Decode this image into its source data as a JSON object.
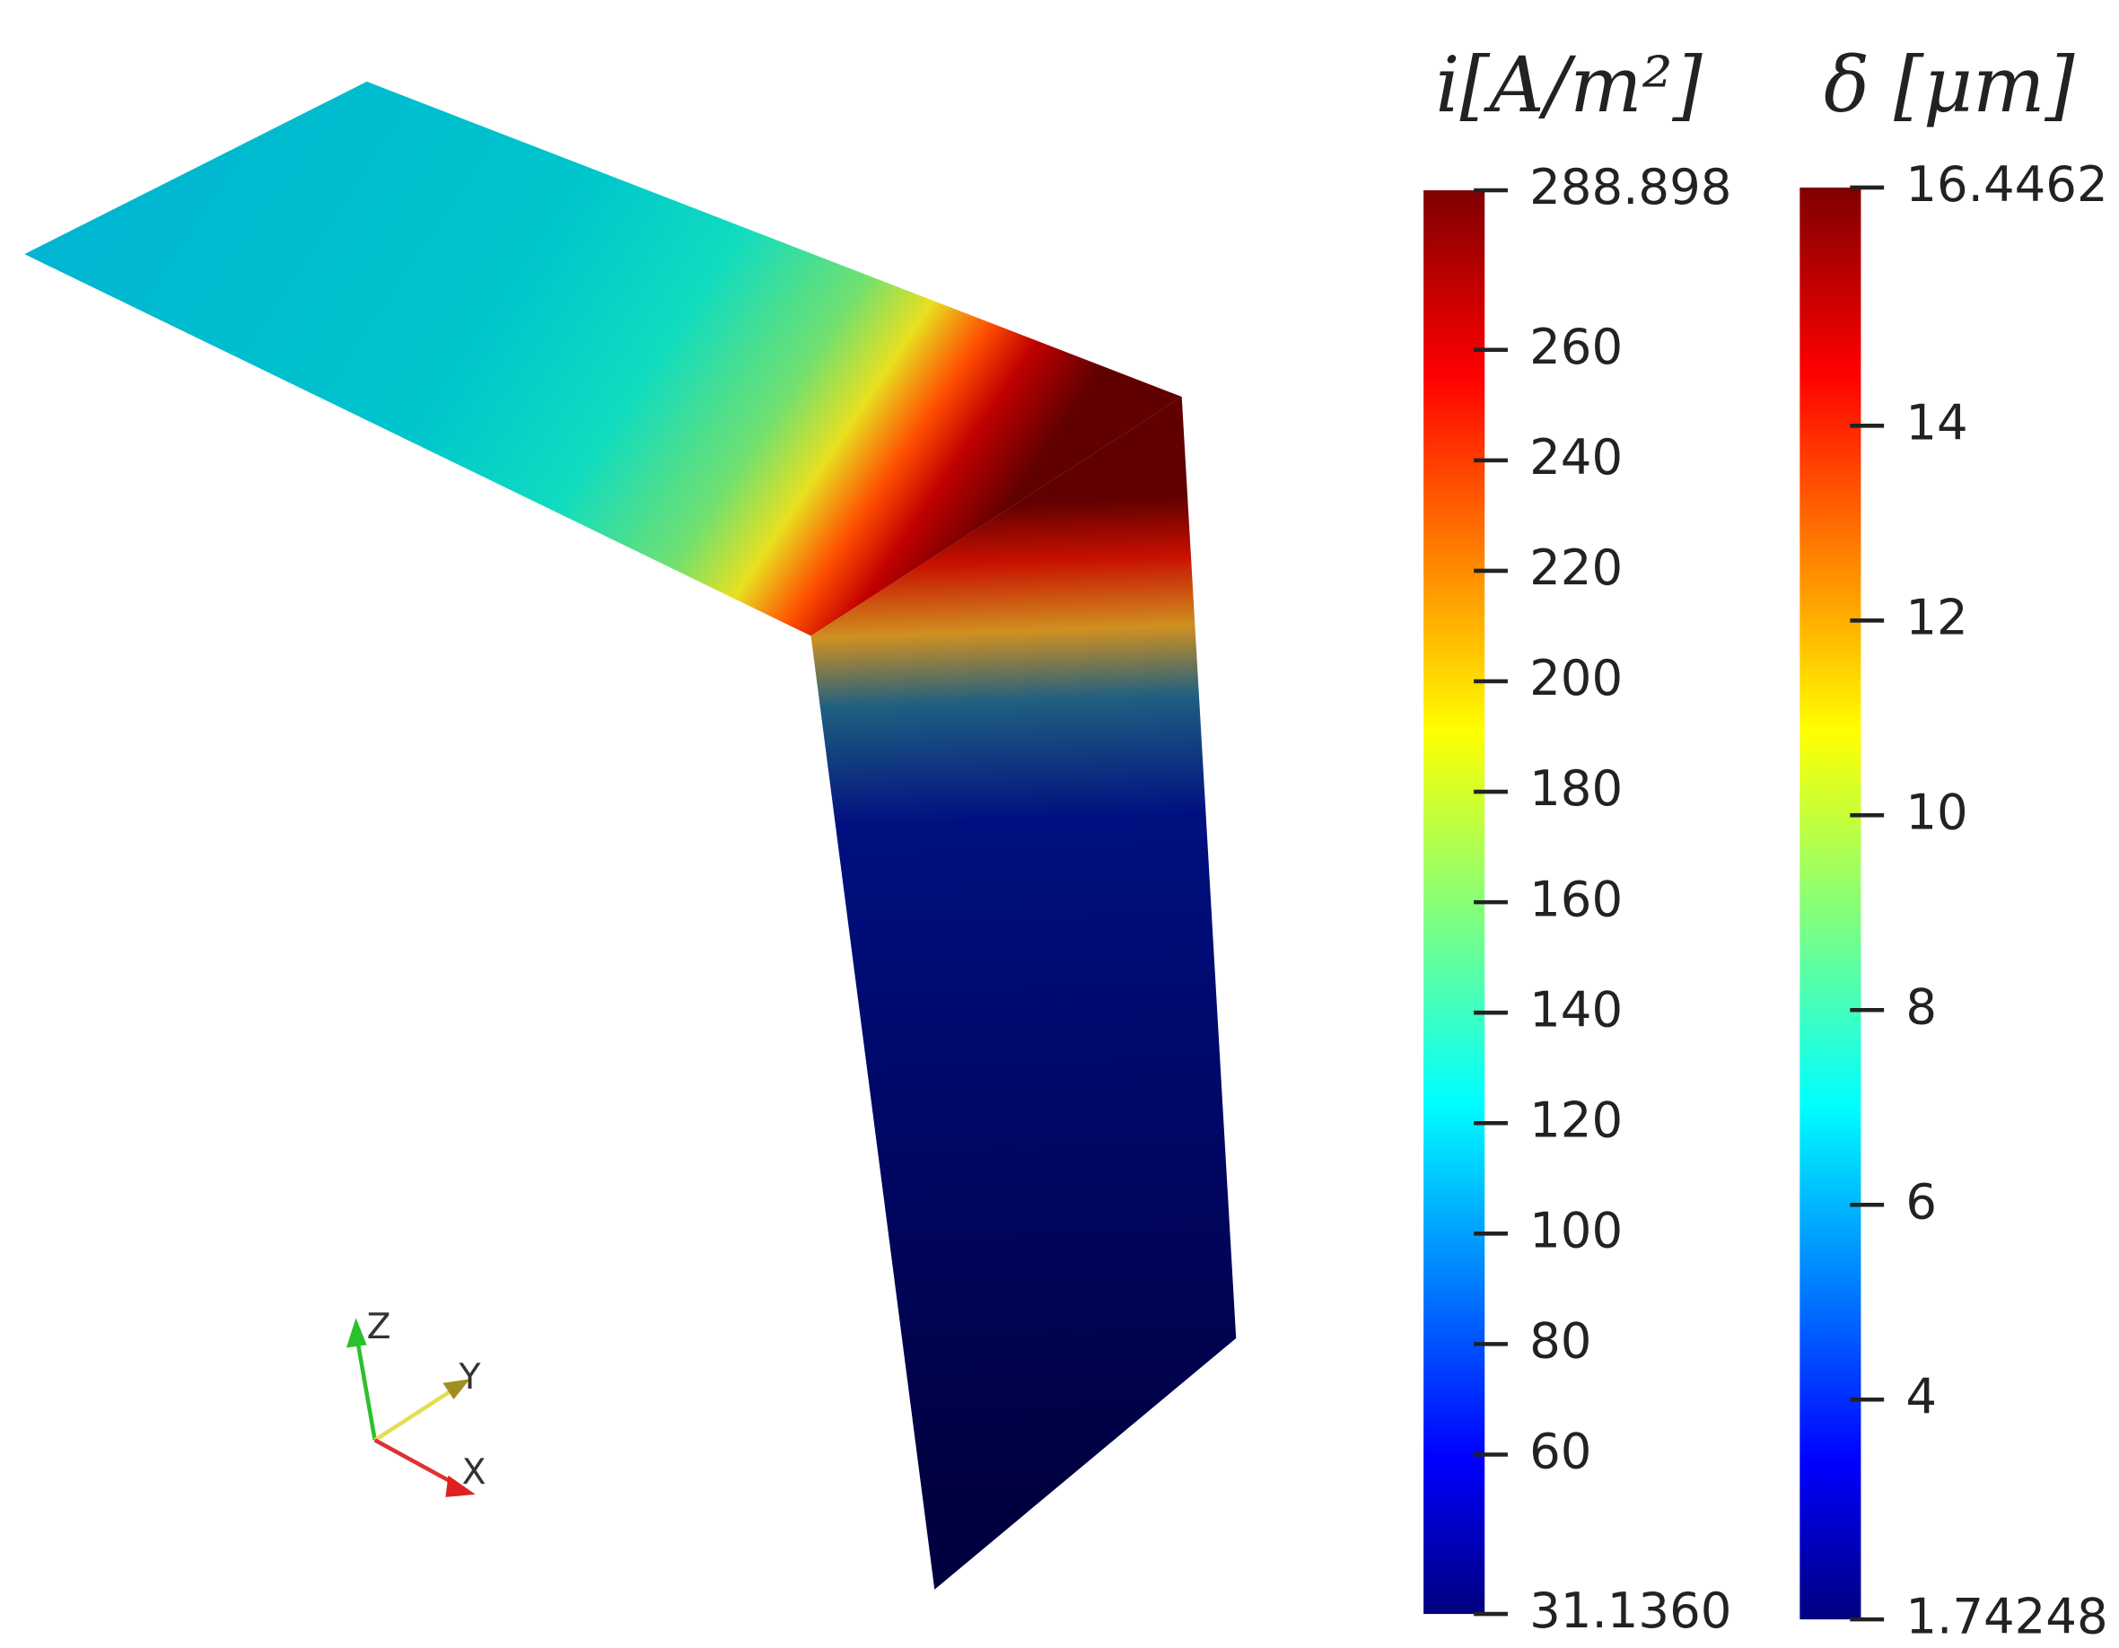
{
  "colorbars": [
    {
      "title": "i[A/m²]",
      "range": [
        31.136,
        288.898
      ],
      "ticks": [
        {
          "value": 31.136,
          "label": "31.1360"
        },
        60,
        80,
        100,
        120,
        140,
        160,
        180,
        200,
        220,
        240,
        260,
        288.898
      ]
    },
    {
      "title": "δ [μm]",
      "range": [
        1.74248,
        16.4462
      ],
      "ticks": [
        1.74248,
        4,
        6,
        8,
        10,
        12,
        14,
        16.4462
      ]
    }
  ],
  "axes": {
    "x": "X",
    "y": "Y",
    "z": "Z"
  }
}
